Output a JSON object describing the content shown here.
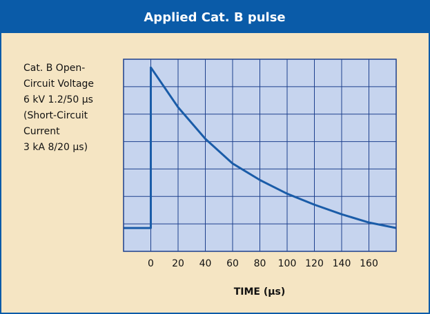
{
  "chart_data": {
    "type": "line",
    "title": "Applied Cat. B pulse",
    "annotation": [
      "Cat. B Open-",
      "Circuit Voltage",
      "6 kV 1.2/50 µs",
      "(Short-Circuit",
      "Current",
      "3 kA 8/20 µs)"
    ],
    "xlabel": "TIME (µs)",
    "x": [
      -20,
      0,
      0,
      20,
      40,
      60,
      80,
      100,
      120,
      140,
      160,
      180
    ],
    "series": [
      {
        "color": "#1a5ca8",
        "values": [
          0.85,
          0.85,
          6.7,
          5.25,
          4.1,
          3.2,
          2.6,
          2.1,
          1.7,
          1.35,
          1.05,
          0.85
        ]
      }
    ],
    "xlim": [
      -20,
      180
    ],
    "xticks": [
      0,
      20,
      40,
      60,
      80,
      100,
      120,
      140,
      160
    ],
    "ylim": [
      0,
      7
    ],
    "yticks": [
      0,
      1,
      2,
      3,
      4,
      5,
      6,
      7
    ],
    "grid": true
  }
}
